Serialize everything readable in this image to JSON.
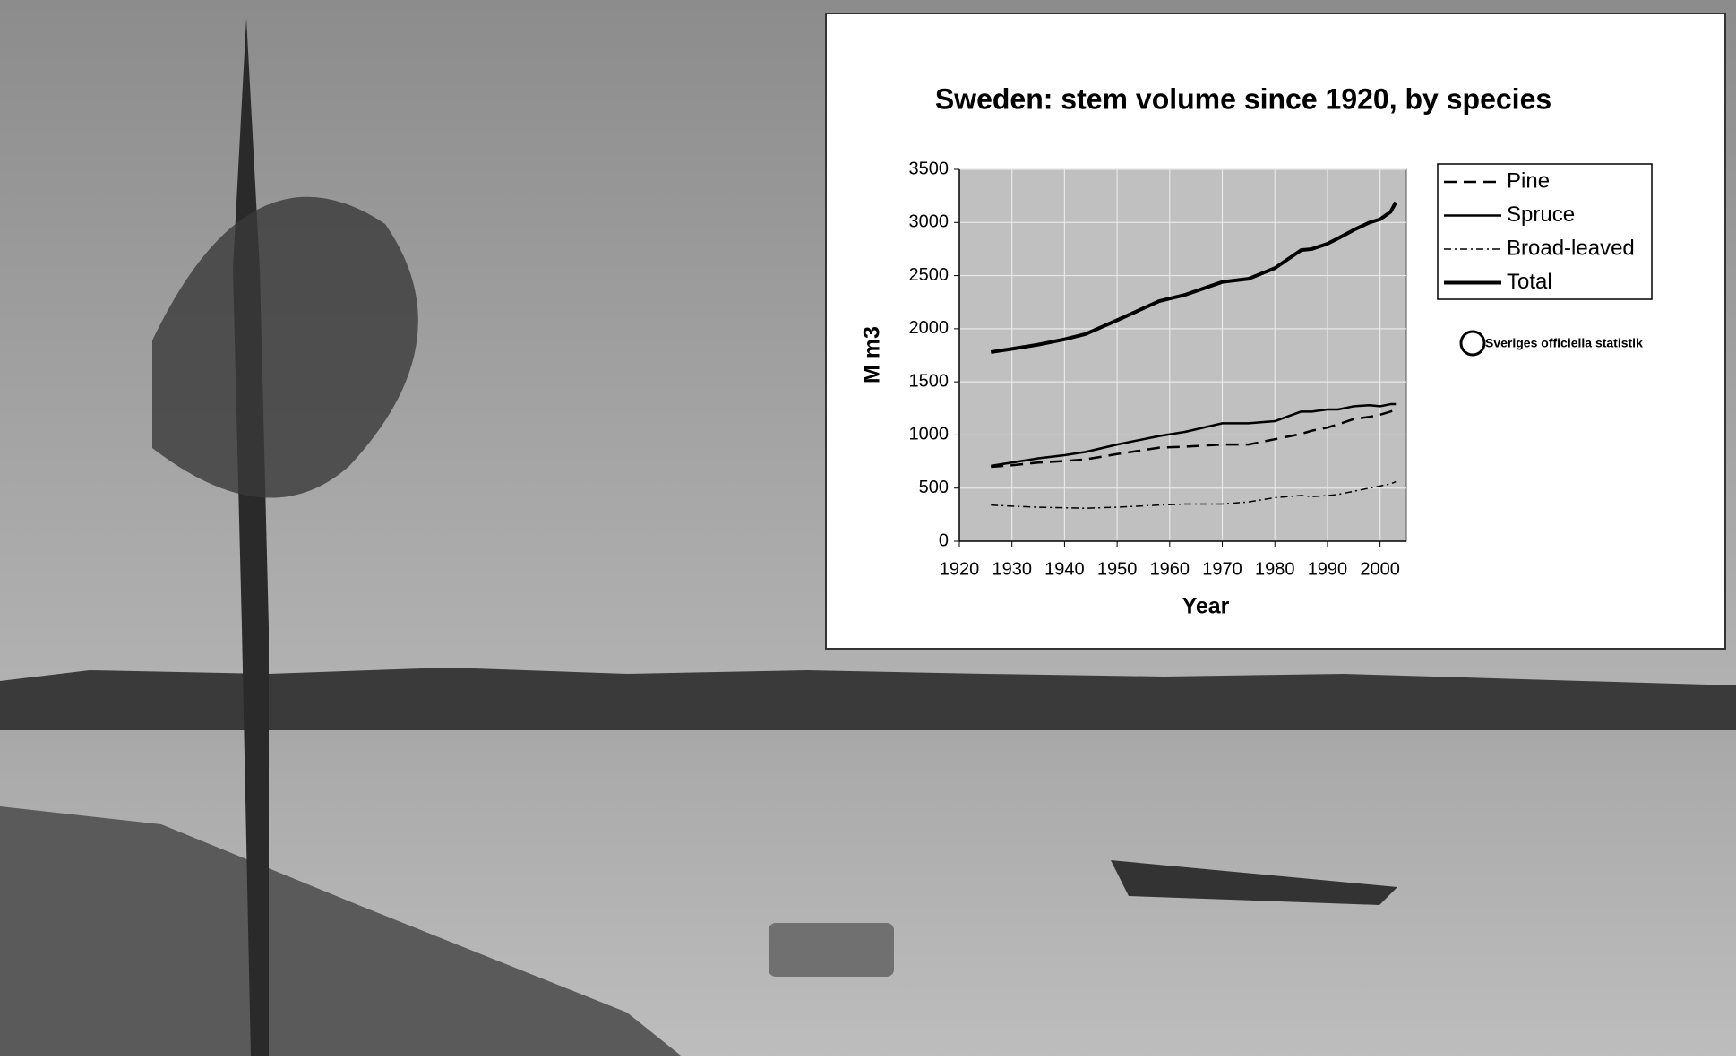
{
  "chart_data": {
    "type": "line",
    "title": "Sweden: stem volume since 1920, by species",
    "x_label": "Year",
    "y_label": "M m3",
    "source": "Sveriges officiella statistik",
    "x": [
      1926,
      1930,
      1935,
      1940,
      1944,
      1950,
      1958,
      1963,
      1970,
      1975,
      1980,
      1985,
      1987,
      1990,
      1992,
      1995,
      1998,
      2000,
      2002,
      2003
    ],
    "series": [
      {
        "name": "Pine",
        "color": "#000000",
        "dash": "14 8",
        "width": 2.5,
        "values": [
          700,
          715,
          740,
          755,
          770,
          820,
          880,
          890,
          910,
          910,
          960,
          1010,
          1040,
          1070,
          1100,
          1150,
          1170,
          1190,
          1220,
          1240
        ]
      },
      {
        "name": "Spruce",
        "color": "#000000",
        "dash": "none",
        "width": 2.5,
        "values": [
          710,
          740,
          780,
          810,
          840,
          910,
          990,
          1030,
          1110,
          1110,
          1130,
          1220,
          1220,
          1240,
          1240,
          1270,
          1280,
          1270,
          1290,
          1290
        ]
      },
      {
        "name": "Broad-leaved",
        "color": "#000000",
        "dash": "8 4 2 4",
        "width": 1.5,
        "values": [
          340,
          330,
          320,
          315,
          310,
          320,
          340,
          350,
          350,
          370,
          410,
          430,
          420,
          430,
          440,
          470,
          500,
          520,
          540,
          560
        ]
      },
      {
        "name": "Total",
        "color": "#000000",
        "dash": "none",
        "width": 4,
        "values": [
          1780,
          1810,
          1850,
          1900,
          1950,
          2080,
          2260,
          2320,
          2440,
          2470,
          2570,
          2740,
          2750,
          2800,
          2850,
          2930,
          3000,
          3030,
          3100,
          3190
        ]
      }
    ],
    "xlim": [
      1920,
      2005
    ],
    "xticks": [
      1920,
      1930,
      1940,
      1950,
      1960,
      1970,
      1980,
      1990,
      2000
    ],
    "ylim": [
      0,
      3500
    ],
    "yticks": [
      0,
      500,
      1000,
      1500,
      2000,
      2500,
      3000,
      3500
    ],
    "grid": true,
    "plot_background": "#c0c0c0",
    "legend": "right"
  }
}
